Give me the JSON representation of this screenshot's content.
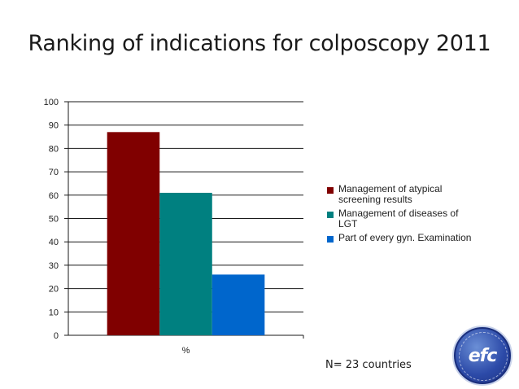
{
  "slide": {
    "title": "Ranking of indications for colposcopy 2011",
    "footnote": "N= 23 countries",
    "logo_text": "efc"
  },
  "chart_data": {
    "type": "bar",
    "title": "",
    "xlabel": "",
    "ylabel": "",
    "categories": [
      "%"
    ],
    "ylim": [
      0,
      100
    ],
    "ytick_step": 10,
    "grid": true,
    "legend_position": "right",
    "series": [
      {
        "name": "Management of atypical screening results",
        "values": [
          87
        ],
        "color": "#800000"
      },
      {
        "name": "Management of diseases of LGT",
        "values": [
          61
        ],
        "color": "#008080"
      },
      {
        "name": "Part of every gyn. Examination",
        "values": [
          26
        ],
        "color": "#0066cc"
      }
    ]
  }
}
